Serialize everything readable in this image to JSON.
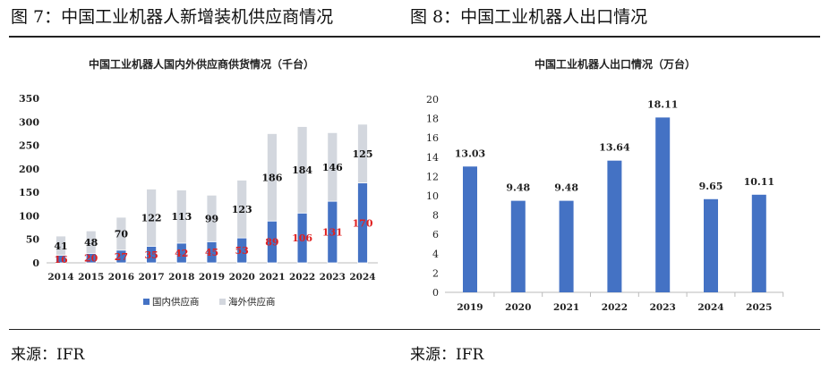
{
  "figures": [
    {
      "caption": "图 7：中国工业机器人新增装机供应商情况",
      "source": "来源：IFR"
    },
    {
      "caption": "图 8：中国工业机器人出口情况",
      "source": "来源：IFR"
    }
  ],
  "chart_data": [
    {
      "type": "bar",
      "stacked": true,
      "title": "中国工业机器人国内外供应商供货情况（千台）",
      "categories": [
        "2014",
        "2015",
        "2016",
        "2017",
        "2018",
        "2019",
        "2020",
        "2021",
        "2022",
        "2023",
        "2024"
      ],
      "series": [
        {
          "name": "国内供应商",
          "color": "#4472C4",
          "label_color": "#E02020",
          "values": [
            16,
            20,
            27,
            35,
            42,
            45,
            53,
            89,
            106,
            131,
            170
          ]
        },
        {
          "name": "海外供应商",
          "color": "#D3D7DE",
          "label_color": "#111111",
          "values": [
            41,
            48,
            70,
            122,
            113,
            99,
            123,
            186,
            184,
            146,
            125
          ]
        }
      ],
      "ylim": [
        0,
        350
      ],
      "yticks": [
        0,
        50,
        100,
        150,
        200,
        250,
        300,
        350
      ],
      "grid": false,
      "legend": "bottom"
    },
    {
      "type": "bar",
      "title": "中国工业机器人出口情况（万台）",
      "categories": [
        "2019",
        "2020",
        "2021",
        "2022",
        "2023",
        "2024",
        "2025"
      ],
      "values": [
        13.03,
        9.48,
        9.48,
        13.64,
        18.11,
        9.65,
        10.11
      ],
      "color": "#4472C4",
      "ylim": [
        0,
        20
      ],
      "yticks": [
        0,
        2,
        4,
        6,
        8,
        10,
        12,
        14,
        16,
        18,
        20
      ],
      "grid": false
    }
  ]
}
